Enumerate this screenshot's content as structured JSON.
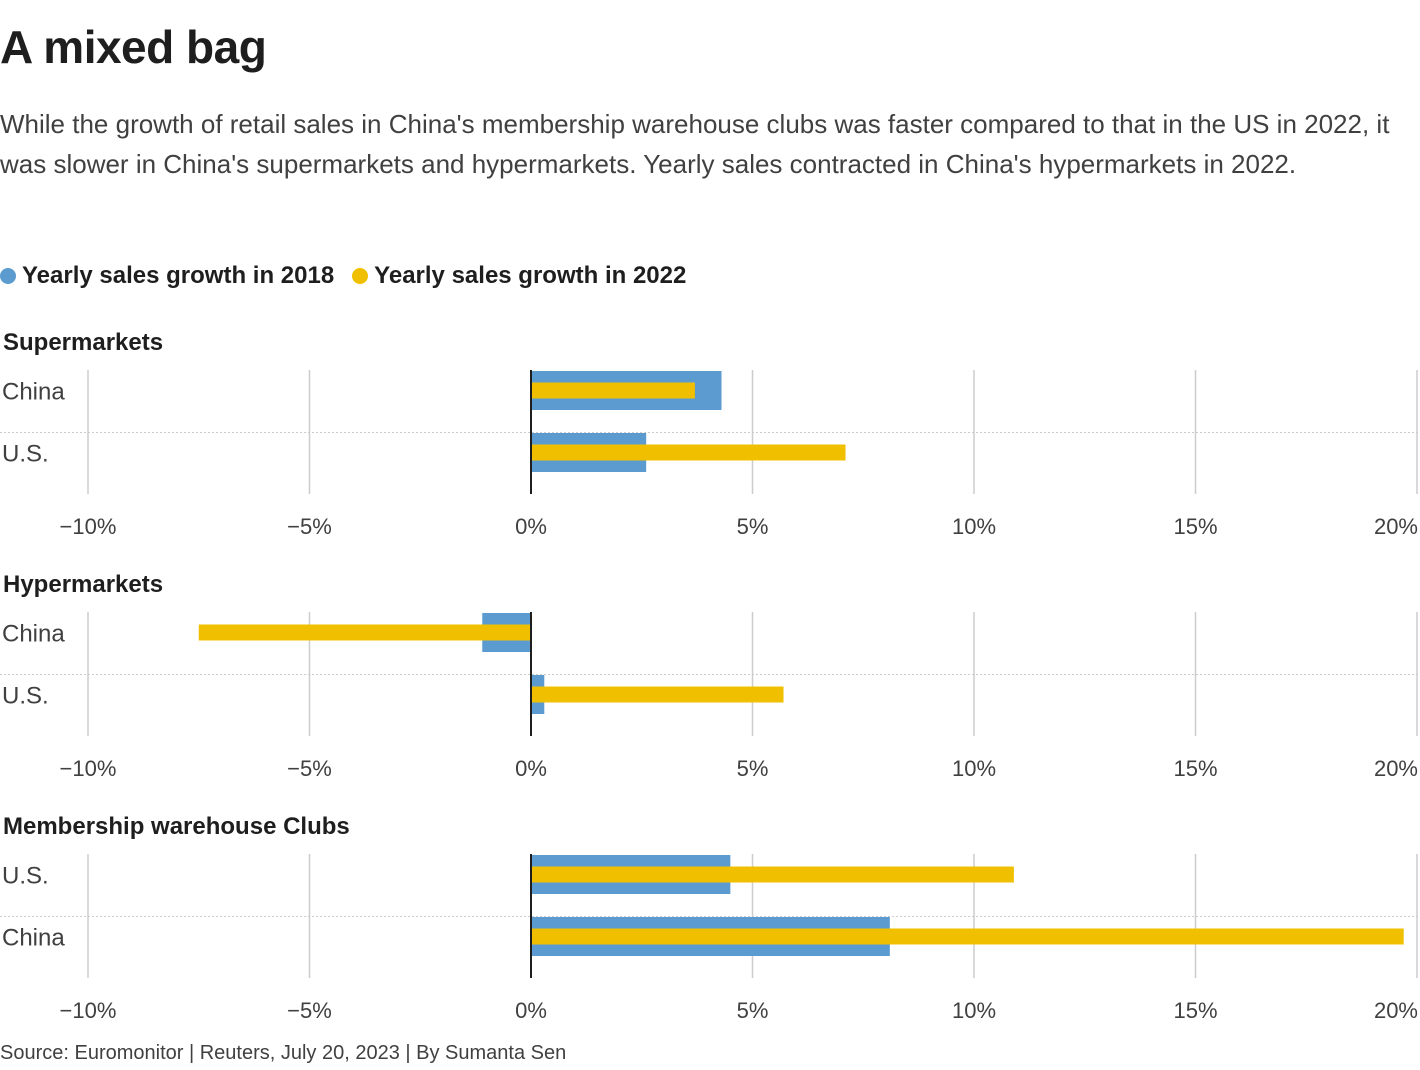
{
  "title": "A mixed bag",
  "subtitle": "While the growth of retail sales in China's membership warehouse clubs was faster compared to that in the US in 2022, it was slower in China's supermarkets and hypermarkets. Yearly sales contracted in China's hypermarkets in 2022.",
  "legend": {
    "series_2018": "Yearly sales growth in 2018",
    "series_2022": "Yearly sales growth in 2022"
  },
  "colors": {
    "series_2018": "#5b9bd0",
    "series_2022": "#f0c000"
  },
  "footer": "Source: Euromonitor | Reuters, July 20, 2023 | By Sumanta Sen",
  "chart_data": {
    "type": "bar",
    "orientation": "horizontal",
    "xlim": [
      -10,
      20
    ],
    "x_ticks": [
      -10,
      -5,
      0,
      5,
      10,
      15,
      20
    ],
    "x_tick_labels": [
      "−10%",
      "−5%",
      "0%",
      "5%",
      "10%",
      "15%",
      "20%"
    ],
    "grid": true,
    "legend_position": "top-left",
    "series_names": [
      "Yearly sales growth in 2018",
      "Yearly sales growth in 2022"
    ],
    "panels": [
      {
        "title": "Supermarkets",
        "categories": [
          "China",
          "U.S."
        ],
        "series": [
          {
            "name": "Yearly sales growth in 2018",
            "values": [
              4.3,
              2.6
            ]
          },
          {
            "name": "Yearly sales growth in 2022",
            "values": [
              3.7,
              7.1
            ]
          }
        ]
      },
      {
        "title": "Hypermarkets",
        "categories": [
          "China",
          "U.S."
        ],
        "series": [
          {
            "name": "Yearly sales growth in 2018",
            "values": [
              -1.1,
              0.3
            ]
          },
          {
            "name": "Yearly sales growth in 2022",
            "values": [
              -7.5,
              5.7
            ]
          }
        ]
      },
      {
        "title": "Membership warehouse Clubs",
        "categories": [
          "U.S.",
          "China"
        ],
        "series": [
          {
            "name": "Yearly sales growth in 2018",
            "values": [
              4.5,
              8.1
            ]
          },
          {
            "name": "Yearly sales growth in 2022",
            "values": [
              10.9,
              19.7
            ]
          }
        ]
      }
    ]
  }
}
